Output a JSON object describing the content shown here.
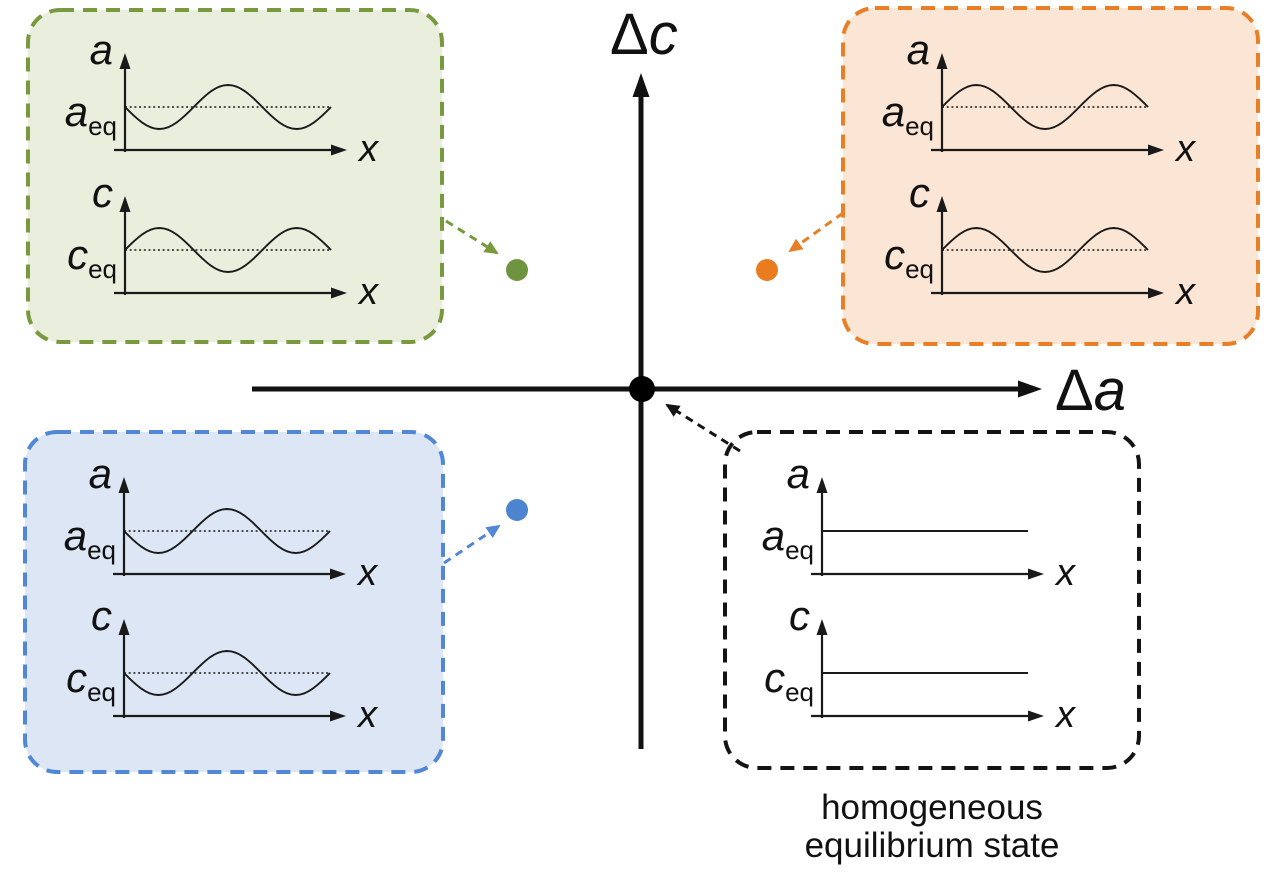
{
  "axis": {
    "y_label": {
      "delta": "Δ",
      "var": "c"
    },
    "x_label": {
      "delta": "Δ",
      "var": "a"
    }
  },
  "caption": {
    "line1": "homogeneous",
    "line2": "equilibrium state"
  },
  "colors": {
    "green": {
      "border": "#79993f",
      "fill": "#e9eedd",
      "dot": "#6f9440"
    },
    "orange": {
      "border": "#e87e25",
      "fill": "#fbe5d4",
      "dot": "#e87c1e"
    },
    "blue": {
      "border": "#5187d5",
      "fill": "#dce6f4",
      "dot": "#4d84cf"
    },
    "black": {
      "border": "#141414",
      "fill": "#ffffff",
      "dot": "#000000"
    }
  },
  "panels": {
    "green": {
      "plots": [
        {
          "y_label": "a",
          "eq_base": "a",
          "eq_sub": "eq",
          "x_label": "x",
          "wave": "down-first"
        },
        {
          "y_label": "c",
          "eq_base": "c",
          "eq_sub": "eq",
          "x_label": "x",
          "wave": "up-first"
        }
      ]
    },
    "orange": {
      "plots": [
        {
          "y_label": "a",
          "eq_base": "a",
          "eq_sub": "eq",
          "x_label": "x",
          "wave": "up-first"
        },
        {
          "y_label": "c",
          "eq_base": "c",
          "eq_sub": "eq",
          "x_label": "x",
          "wave": "up-first"
        }
      ]
    },
    "blue": {
      "plots": [
        {
          "y_label": "a",
          "eq_base": "a",
          "eq_sub": "eq",
          "x_label": "x",
          "wave": "down-first"
        },
        {
          "y_label": "c",
          "eq_base": "c",
          "eq_sub": "eq",
          "x_label": "x",
          "wave": "down-first"
        }
      ]
    },
    "eq": {
      "plots": [
        {
          "y_label": "a",
          "eq_base": "a",
          "eq_sub": "eq",
          "x_label": "x",
          "wave": "flat"
        },
        {
          "y_label": "c",
          "eq_base": "c",
          "eq_sub": "eq",
          "x_label": "x",
          "wave": "flat"
        }
      ]
    }
  }
}
